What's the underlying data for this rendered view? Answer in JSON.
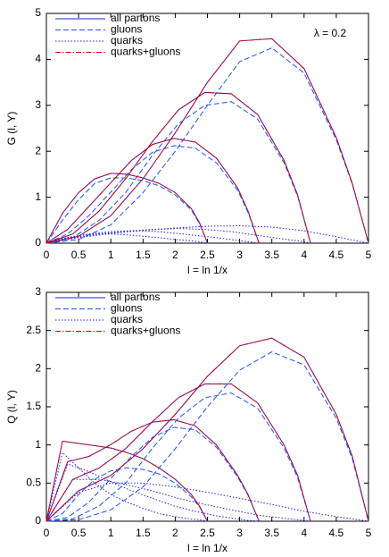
{
  "chart_data": [
    {
      "type": "line",
      "ylabel": "G (l, Y)",
      "xlabel": "l = ln 1/x",
      "annotation": "λ = 0.2",
      "xlim": [
        0,
        5
      ],
      "xticks": [
        0,
        0.5,
        1,
        1.5,
        2,
        2.5,
        3,
        3.5,
        4,
        4.5,
        5
      ],
      "ylim": [
        0,
        5
      ],
      "yticks": [
        0,
        1,
        2,
        3,
        4,
        5
      ],
      "curve_x": [
        [
          0,
          0.25,
          0.5,
          0.75,
          1,
          1.25,
          1.5,
          1.75,
          2,
          2.25,
          2.375,
          2.5
        ],
        [
          0,
          0.33,
          0.66,
          0.99,
          1.32,
          1.65,
          1.98,
          2.31,
          2.64,
          2.97,
          3.13,
          3.3
        ],
        [
          0,
          0.41,
          0.82,
          1.23,
          1.64,
          2.05,
          2.46,
          2.87,
          3.28,
          3.69,
          3.9,
          4.1
        ],
        [
          0,
          0.5,
          1,
          1.5,
          2,
          2.5,
          3,
          3.5,
          4,
          4.5,
          4.75,
          5
        ]
      ],
      "series": [
        {
          "name": "all partons",
          "color": "#2020e0",
          "dash": "solid",
          "curves": [
            [
              0,
              0.65,
              1.1,
              1.4,
              1.52,
              1.5,
              1.42,
              1.3,
              1.1,
              0.75,
              0.45,
              0
            ],
            [
              0,
              0.3,
              0.8,
              1.3,
              1.8,
              2.15,
              2.28,
              2.2,
              1.85,
              1.2,
              0.7,
              0
            ],
            [
              0,
              0.2,
              0.7,
              1.4,
              2.2,
              2.9,
              3.28,
              3.25,
              2.8,
              1.8,
              1.05,
              0
            ],
            [
              0,
              0.15,
              0.6,
              1.4,
              2.4,
              3.5,
              4.4,
              4.45,
              3.8,
              2.3,
              1.3,
              0
            ]
          ]
        },
        {
          "name": "gluons",
          "color": "#2050e0",
          "dash": "dashed",
          "curves": [
            [
              0,
              0.5,
              0.95,
              1.3,
              1.42,
              1.42,
              1.36,
              1.25,
              1.05,
              0.72,
              0.43,
              0
            ],
            [
              0,
              0.2,
              0.6,
              1.1,
              1.6,
              1.98,
              2.12,
              2.07,
              1.75,
              1.15,
              0.67,
              0
            ],
            [
              0,
              0.12,
              0.5,
              1.1,
              1.9,
              2.6,
              3.0,
              3.08,
              2.7,
              1.75,
              1.02,
              0
            ],
            [
              0,
              0.08,
              0.4,
              1.1,
              2.0,
              3.0,
              3.95,
              4.25,
              3.7,
              2.25,
              1.28,
              0
            ]
          ]
        },
        {
          "name": "quarks",
          "color": "#2020d0",
          "dash": "dotted",
          "curves": [
            [
              0,
              0.1,
              0.17,
              0.2,
              0.2,
              0.18,
              0.15,
              0.12,
              0.08,
              0.05,
              0.03,
              0
            ],
            [
              0,
              0.12,
              0.2,
              0.25,
              0.27,
              0.26,
              0.22,
              0.17,
              0.12,
              0.06,
              0.03,
              0
            ],
            [
              0,
              0.12,
              0.2,
              0.26,
              0.3,
              0.32,
              0.3,
              0.25,
              0.17,
              0.09,
              0.05,
              0
            ],
            [
              0,
              0.12,
              0.21,
              0.28,
              0.33,
              0.37,
              0.38,
              0.35,
              0.27,
              0.14,
              0.07,
              0
            ]
          ]
        },
        {
          "name": "quarks+gluons",
          "color": "#e00000",
          "dash": "dashdot",
          "curves": [
            [
              0,
              0.65,
              1.1,
              1.4,
              1.52,
              1.5,
              1.42,
              1.3,
              1.1,
              0.75,
              0.45,
              0
            ],
            [
              0,
              0.3,
              0.8,
              1.3,
              1.8,
              2.15,
              2.28,
              2.2,
              1.85,
              1.2,
              0.7,
              0
            ],
            [
              0,
              0.2,
              0.7,
              1.4,
              2.2,
              2.9,
              3.28,
              3.25,
              2.8,
              1.8,
              1.05,
              0
            ],
            [
              0,
              0.15,
              0.6,
              1.4,
              2.4,
              3.5,
              4.4,
              4.45,
              3.8,
              2.3,
              1.3,
              0
            ]
          ]
        }
      ]
    },
    {
      "type": "line",
      "ylabel": "Q (l, Y)",
      "xlabel": "l = ln 1/x",
      "xlim": [
        0,
        5
      ],
      "xticks": [
        0,
        0.5,
        1,
        1.5,
        2,
        2.5,
        3,
        3.5,
        4,
        4.5,
        5
      ],
      "ylim": [
        0,
        3
      ],
      "yticks": [
        0,
        0.5,
        1,
        1.5,
        2,
        2.5,
        3
      ],
      "curve_x": [
        [
          0,
          0.25,
          0.5,
          0.75,
          1,
          1.25,
          1.5,
          1.75,
          2,
          2.25,
          2.375,
          2.5
        ],
        [
          0,
          0.33,
          0.66,
          0.99,
          1.32,
          1.65,
          1.98,
          2.31,
          2.64,
          2.97,
          3.13,
          3.3
        ],
        [
          0,
          0.41,
          0.82,
          1.23,
          1.64,
          2.05,
          2.46,
          2.87,
          3.28,
          3.69,
          3.9,
          4.1
        ],
        [
          0,
          0.5,
          1,
          1.5,
          2,
          2.5,
          3,
          3.5,
          4,
          4.5,
          4.75,
          5
        ]
      ],
      "series": [
        {
          "name": "all partons",
          "color": "#2020e0",
          "dash": "solid",
          "curves": [
            [
              0,
              1.05,
              1.02,
              0.99,
              0.96,
              0.9,
              0.82,
              0.7,
              0.55,
              0.35,
              0.2,
              0
            ],
            [
              0,
              0.78,
              0.85,
              1.0,
              1.18,
              1.3,
              1.33,
              1.25,
              1.0,
              0.6,
              0.35,
              0
            ],
            [
              0,
              0.55,
              0.7,
              0.95,
              1.3,
              1.62,
              1.8,
              1.8,
              1.55,
              1.0,
              0.6,
              0
            ],
            [
              0,
              0.4,
              0.6,
              0.95,
              1.4,
              1.9,
              2.3,
              2.4,
              2.15,
              1.4,
              0.85,
              0
            ]
          ]
        },
        {
          "name": "gluons",
          "color": "#2050e0",
          "dash": "dashed",
          "curves": [
            [
              0,
              0.1,
              0.35,
              0.55,
              0.66,
              0.7,
              0.68,
              0.62,
              0.5,
              0.32,
              0.19,
              0
            ],
            [
              0,
              0.05,
              0.25,
              0.55,
              0.85,
              1.1,
              1.23,
              1.2,
              0.97,
              0.58,
              0.34,
              0
            ],
            [
              0,
              0.03,
              0.2,
              0.5,
              0.95,
              1.35,
              1.62,
              1.68,
              1.48,
              0.96,
              0.57,
              0
            ],
            [
              0,
              0.02,
              0.15,
              0.45,
              0.95,
              1.5,
              1.98,
              2.22,
              2.05,
              1.35,
              0.82,
              0
            ]
          ]
        },
        {
          "name": "quarks",
          "color": "#2020d0",
          "dash": "dotted",
          "curves": [
            [
              0,
              0.9,
              0.7,
              0.5,
              0.35,
              0.25,
              0.17,
              0.1,
              0.06,
              0.03,
              0.02,
              0
            ],
            [
              0,
              0.75,
              0.65,
              0.52,
              0.4,
              0.3,
              0.2,
              0.13,
              0.07,
              0.03,
              0.01,
              0
            ],
            [
              0,
              0.55,
              0.55,
              0.48,
              0.4,
              0.3,
              0.22,
              0.15,
              0.08,
              0.04,
              0.02,
              0
            ],
            [
              0,
              0.38,
              0.5,
              0.5,
              0.45,
              0.38,
              0.3,
              0.22,
              0.13,
              0.06,
              0.03,
              0
            ]
          ]
        },
        {
          "name": "quarks+gluons",
          "color": "#e00000",
          "dash": "dashdot",
          "curves": [
            [
              0,
              1.05,
              1.02,
              0.99,
              0.96,
              0.9,
              0.82,
              0.7,
              0.55,
              0.35,
              0.2,
              0
            ],
            [
              0,
              0.78,
              0.85,
              1.0,
              1.18,
              1.3,
              1.33,
              1.25,
              1.0,
              0.6,
              0.35,
              0
            ],
            [
              0,
              0.55,
              0.7,
              0.95,
              1.3,
              1.62,
              1.8,
              1.8,
              1.55,
              1.0,
              0.6,
              0
            ],
            [
              0,
              0.4,
              0.6,
              0.95,
              1.4,
              1.9,
              2.3,
              2.4,
              2.15,
              1.4,
              0.85,
              0
            ]
          ]
        }
      ]
    }
  ]
}
